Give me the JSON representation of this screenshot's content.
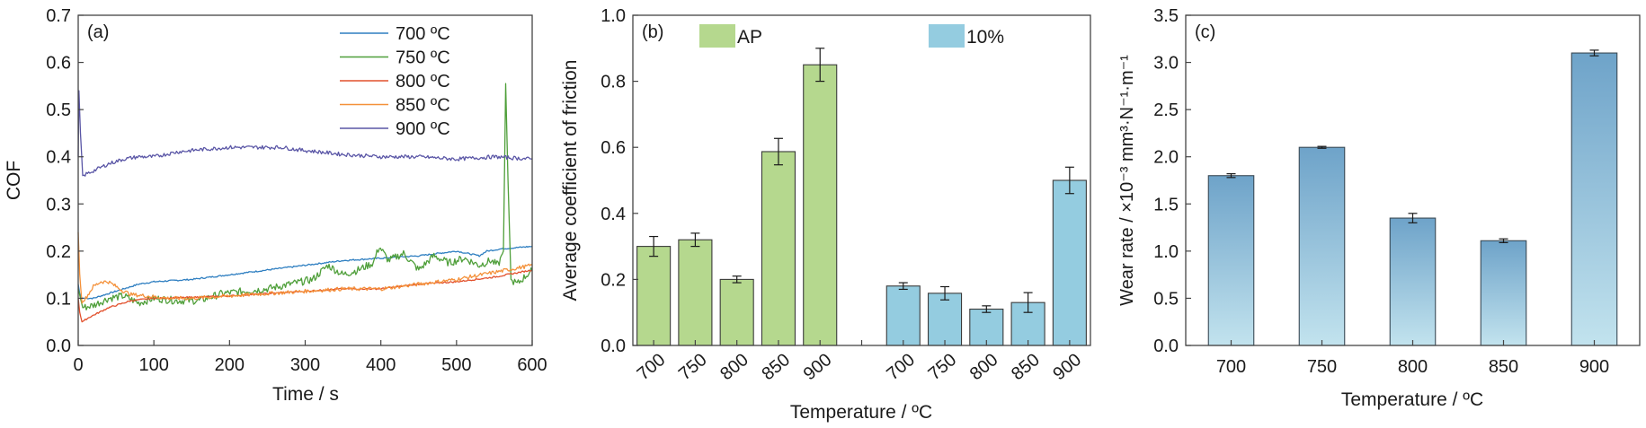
{
  "figure": {
    "panels": [
      "(a)",
      "(b)",
      "(c)"
    ]
  },
  "chart_data": [
    {
      "id": "a",
      "type": "line",
      "panel_label": "(a)",
      "title": "",
      "xlabel": "Time / s",
      "ylabel": "COF",
      "xlim": [
        0,
        600
      ],
      "ylim": [
        0,
        0.7
      ],
      "xticks": [
        0,
        100,
        200,
        300,
        400,
        500,
        600
      ],
      "xtick_labels": [
        "0",
        "100",
        "200",
        "300",
        "400",
        "500",
        "600"
      ],
      "yticks": [
        0,
        0.1,
        0.2,
        0.3,
        0.4,
        0.5,
        0.6,
        0.7
      ],
      "ytick_labels": [
        "0.0",
        "0.1",
        "0.2",
        "0.3",
        "0.4",
        "0.5",
        "0.6",
        "0.7"
      ],
      "grid": false,
      "legend_position": "top-right",
      "series": [
        {
          "name": "700 °C",
          "legend_label": "700 ºC",
          "color": "#2f7fc1",
          "x": [
            0,
            2,
            5,
            20,
            50,
            80,
            100,
            150,
            200,
            250,
            300,
            350,
            400,
            450,
            500,
            530,
            540,
            560,
            600
          ],
          "y": [
            0.13,
            0.11,
            0.1,
            0.1,
            0.115,
            0.13,
            0.135,
            0.14,
            0.15,
            0.16,
            0.17,
            0.18,
            0.185,
            0.19,
            0.2,
            0.19,
            0.2,
            0.205,
            0.21
          ]
        },
        {
          "name": "750 °C",
          "legend_label": "750 ºC",
          "color": "#4f9f3a",
          "x": [
            0,
            3,
            6,
            20,
            40,
            60,
            80,
            100,
            130,
            160,
            190,
            220,
            250,
            280,
            310,
            330,
            350,
            370,
            390,
            398,
            410,
            430,
            450,
            470,
            490,
            510,
            530,
            545,
            555,
            562,
            565,
            568,
            572,
            580,
            600
          ],
          "y": [
            0.12,
            0.1,
            0.08,
            0.085,
            0.1,
            0.105,
            0.09,
            0.1,
            0.095,
            0.095,
            0.11,
            0.115,
            0.12,
            0.13,
            0.14,
            0.17,
            0.15,
            0.16,
            0.175,
            0.21,
            0.18,
            0.195,
            0.16,
            0.19,
            0.175,
            0.185,
            0.17,
            0.18,
            0.17,
            0.2,
            0.555,
            0.35,
            0.14,
            0.13,
            0.16
          ]
        },
        {
          "name": "800 °C",
          "legend_label": "800 ºC",
          "color": "#e2502c",
          "x": [
            0,
            2,
            5,
            15,
            40,
            70,
            100,
            150,
            200,
            250,
            300,
            350,
            400,
            450,
            500,
            550,
            600
          ],
          "y": [
            0.1,
            0.07,
            0.05,
            0.06,
            0.08,
            0.095,
            0.1,
            0.102,
            0.105,
            0.11,
            0.115,
            0.12,
            0.12,
            0.13,
            0.135,
            0.145,
            0.16
          ]
        },
        {
          "name": "850 °C",
          "legend_label": "850 ºC",
          "color": "#f4913a",
          "x": [
            0,
            2,
            5,
            10,
            20,
            30,
            40,
            50,
            60,
            70,
            90,
            120,
            150,
            200,
            250,
            300,
            350,
            400,
            450,
            500,
            550,
            600
          ],
          "y": [
            0.24,
            0.15,
            0.09,
            0.1,
            0.125,
            0.135,
            0.135,
            0.125,
            0.115,
            0.108,
            0.105,
            0.1,
            0.1,
            0.105,
            0.11,
            0.115,
            0.12,
            0.12,
            0.13,
            0.14,
            0.155,
            0.17
          ]
        },
        {
          "name": "900 °C",
          "legend_label": "900 ºC",
          "color": "#5a56a6",
          "x": [
            0,
            1,
            3,
            6,
            20,
            40,
            60,
            80,
            100,
            130,
            160,
            200,
            230,
            270,
            290,
            320,
            350,
            400,
            450,
            500,
            550,
            600
          ],
          "y": [
            0.4,
            0.54,
            0.45,
            0.36,
            0.37,
            0.385,
            0.395,
            0.4,
            0.4,
            0.41,
            0.415,
            0.42,
            0.42,
            0.42,
            0.415,
            0.41,
            0.405,
            0.4,
            0.4,
            0.395,
            0.4,
            0.395
          ]
        }
      ]
    },
    {
      "id": "b",
      "type": "bar",
      "panel_label": "(b)",
      "title": "",
      "xlabel": "Temperature / ºC",
      "ylabel": "Average coefficient of friction",
      "ylim": [
        0,
        1.0
      ],
      "yticks": [
        0,
        0.2,
        0.4,
        0.6,
        0.8,
        1.0
      ],
      "ytick_labels": [
        "0.0",
        "0.2",
        "0.4",
        "0.6",
        "0.8",
        "1.0"
      ],
      "grid": false,
      "legend_position": "top",
      "categories": [
        "700",
        "750",
        "800",
        "850",
        "900"
      ],
      "series": [
        {
          "name": "AP",
          "color": "#b5d88e",
          "values": [
            0.3,
            0.32,
            0.2,
            0.587,
            0.85
          ],
          "errors": [
            0.03,
            0.02,
            0.01,
            0.04,
            0.05
          ]
        },
        {
          "name": "10%",
          "color": "#94cce0",
          "values": [
            0.18,
            0.158,
            0.11,
            0.13,
            0.5
          ],
          "errors": [
            0.01,
            0.02,
            0.01,
            0.03,
            0.04
          ]
        }
      ]
    },
    {
      "id": "c",
      "type": "bar",
      "panel_label": "(c)",
      "title": "",
      "xlabel": "Temperature / ºC",
      "ylabel": "Wear rate / ×10⁻³ mm³·N⁻¹·m⁻¹",
      "ylim": [
        0,
        3.5
      ],
      "yticks": [
        0,
        0.5,
        1.0,
        1.5,
        2.0,
        2.5,
        3.0,
        3.5
      ],
      "ytick_labels": [
        "0.0",
        "0.5",
        "1.0",
        "1.5",
        "2.0",
        "2.5",
        "3.0",
        "3.5"
      ],
      "grid": false,
      "categories": [
        "700",
        "750",
        "800",
        "850",
        "900"
      ],
      "series": [
        {
          "name": "Wear rate",
          "color_top": "#6ea3c9",
          "color_bottom": "#c2e3ee",
          "values": [
            1.8,
            2.1,
            1.35,
            1.11,
            3.1
          ],
          "errors": [
            0.02,
            0.01,
            0.05,
            0.02,
            0.03
          ]
        }
      ]
    }
  ]
}
